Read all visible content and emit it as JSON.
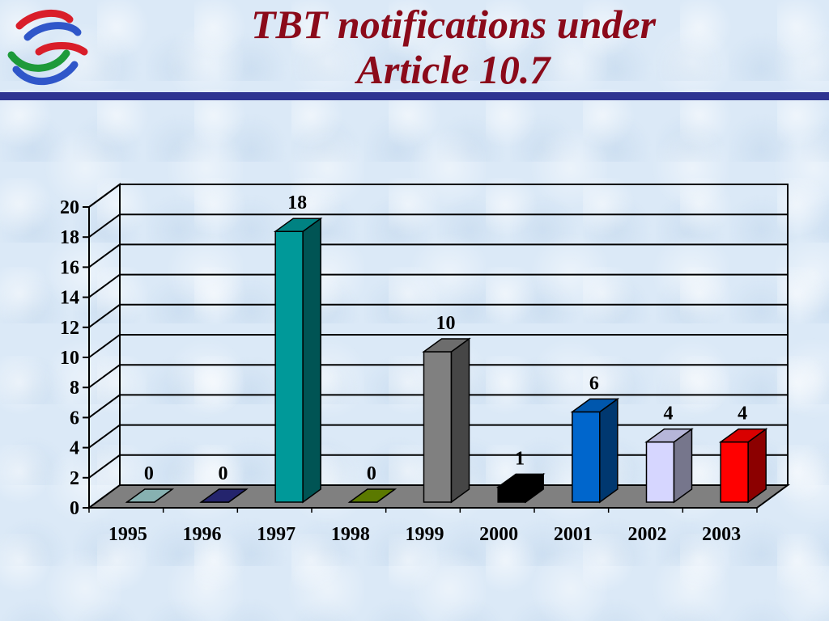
{
  "slide": {
    "title_line1": "TBT notifications under",
    "title_line2": "Article 10.7",
    "accent_color": "#8b0a1a",
    "rule_color": "#2e3491"
  },
  "logo": {
    "icon": "wto-logo-icon"
  },
  "chart_data": {
    "type": "bar",
    "style": "3d-column",
    "categories": [
      "1995",
      "1996",
      "1997",
      "1998",
      "1999",
      "2000",
      "2001",
      "2002",
      "2003"
    ],
    "values": [
      0,
      0,
      18,
      0,
      10,
      1,
      6,
      4,
      4
    ],
    "colors": [
      "#9fd0d0",
      "#2a2a80",
      "#009999",
      "#6b8e00",
      "#808080",
      "#000000",
      "#0066cc",
      "#d6d6ff",
      "#ff0000"
    ],
    "data_labels": [
      "0",
      "0",
      "18",
      "0",
      "10",
      "1",
      "6",
      "4",
      "4"
    ],
    "ylim": [
      0,
      20
    ],
    "yticks": [
      0,
      2,
      4,
      6,
      8,
      10,
      12,
      14,
      16,
      18,
      20
    ],
    "grid": true,
    "legend": "none",
    "floor_color": "#808080"
  }
}
